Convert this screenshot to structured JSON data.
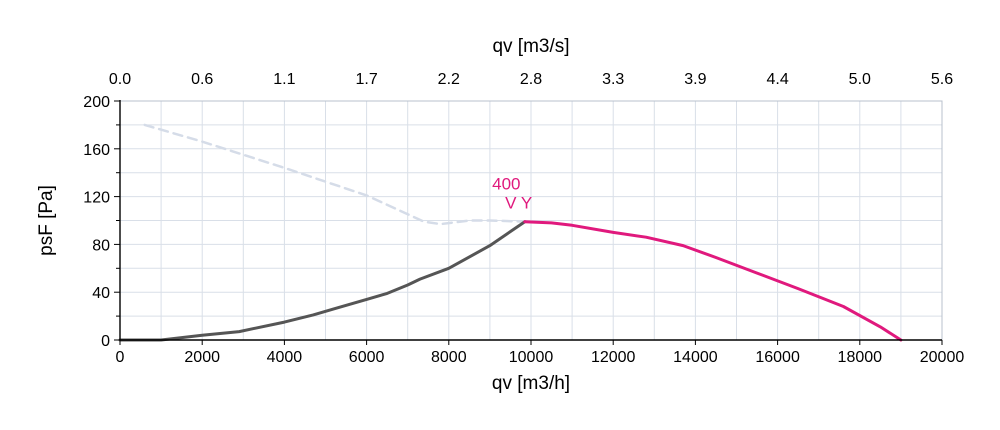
{
  "chart_data": {
    "type": "line",
    "xlabel": "qv [m3/h]",
    "x2label": "qv [m3/s]",
    "ylabel": "psF [Pa]",
    "xlim": [
      0,
      20000
    ],
    "ylim": [
      0,
      200
    ],
    "grid": true,
    "x_ticks": [
      "0",
      "2000",
      "4000",
      "6000",
      "8000",
      "10000",
      "12000",
      "14000",
      "16000",
      "18000",
      "20000"
    ],
    "x2_ticks": [
      "0.0",
      "0.6",
      "1.1",
      "1.7",
      "2.2",
      "2.8",
      "3.3",
      "3.9",
      "4.4",
      "5.0",
      "5.6"
    ],
    "y_ticks": [
      "0",
      "40",
      "80",
      "120",
      "160",
      "200"
    ],
    "colors": {
      "system_curve": "#555555",
      "operating_curve": "#e0197d",
      "reference_curve": "#d5dce8",
      "grid": "#d9dfe8"
    },
    "series": [
      {
        "key": "reference",
        "style": "dashed",
        "color": "#d5dce8",
        "points": [
          [
            600,
            180
          ],
          [
            2000,
            166
          ],
          [
            4000,
            144
          ],
          [
            6000,
            121
          ],
          [
            7400,
            99
          ],
          [
            7800,
            97
          ],
          [
            8500,
            100
          ],
          [
            9000,
            100
          ],
          [
            9900,
            99
          ]
        ]
      },
      {
        "key": "system",
        "style": "solid",
        "color": "#555555",
        "points": [
          [
            0,
            0
          ],
          [
            1000,
            0
          ],
          [
            2000,
            4
          ],
          [
            2900,
            7
          ],
          [
            4000,
            15
          ],
          [
            4700,
            21
          ],
          [
            5200,
            26
          ],
          [
            6000,
            34
          ],
          [
            6500,
            39
          ],
          [
            7000,
            46
          ],
          [
            7300,
            51
          ],
          [
            8000,
            60
          ],
          [
            9000,
            79
          ],
          [
            9850,
            99
          ]
        ]
      },
      {
        "key": "operating",
        "style": "solid",
        "color": "#e0197d",
        "points": [
          [
            9850,
            99
          ],
          [
            10500,
            98
          ],
          [
            11000,
            96
          ],
          [
            12000,
            90
          ],
          [
            12800,
            86
          ],
          [
            13700,
            79
          ],
          [
            14500,
            69
          ],
          [
            15500,
            56
          ],
          [
            16500,
            43
          ],
          [
            17600,
            28
          ],
          [
            18500,
            11
          ],
          [
            19000,
            0
          ]
        ]
      }
    ],
    "annotations": [
      {
        "text": "400",
        "x": 9400,
        "y": 126
      },
      {
        "text": "V Y",
        "x": 9700,
        "y": 110
      }
    ]
  }
}
